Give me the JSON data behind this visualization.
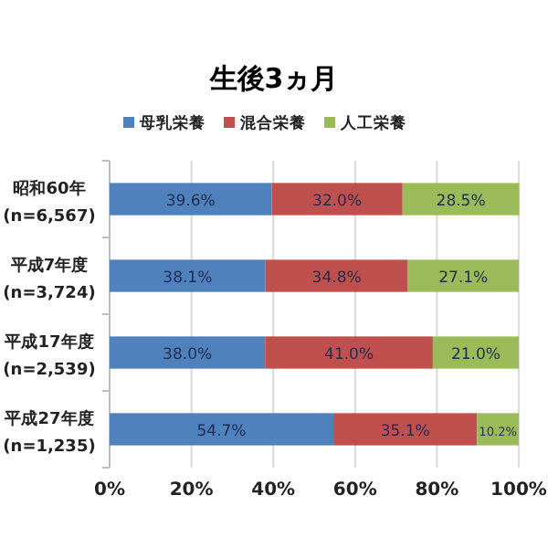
{
  "chart_data": {
    "type": "bar",
    "title": "生後3ヵ月",
    "orientation": "horizontal",
    "stacked": true,
    "categories": [
      "昭和60年\n(n=6,567)",
      "平成7年度\n(n=3,724)",
      "平成17年度\n(n=2,539)",
      "平成27年度\n(n=1,235)"
    ],
    "series": [
      {
        "name": "母乳栄養",
        "color": "#4f81bd",
        "values": [
          39.6,
          38.1,
          38.0,
          54.7
        ],
        "value_labels": [
          "39.6%",
          "38.1%",
          "38.0%",
          "54.7%"
        ]
      },
      {
        "name": "混合栄養",
        "color": "#c0504d",
        "values": [
          32.0,
          34.8,
          41.0,
          35.1
        ],
        "value_labels": [
          "32.0%",
          "34.8%",
          "41.0%",
          "35.1%"
        ]
      },
      {
        "name": "人工栄養",
        "color": "#9bbb59",
        "values": [
          28.5,
          27.1,
          21.0,
          10.2
        ],
        "value_labels": [
          "28.5%",
          "27.1%",
          "21.0%",
          "10.2%"
        ]
      }
    ],
    "xlim": [
      0,
      100
    ],
    "xticks": [
      {
        "value": 0,
        "label": "0%"
      },
      {
        "value": 20,
        "label": "20%"
      },
      {
        "value": 40,
        "label": "40%"
      },
      {
        "value": 60,
        "label": "60%"
      },
      {
        "value": 80,
        "label": "80%"
      },
      {
        "value": 100,
        "label": "100%"
      }
    ],
    "grid": "x",
    "legend": "top"
  }
}
